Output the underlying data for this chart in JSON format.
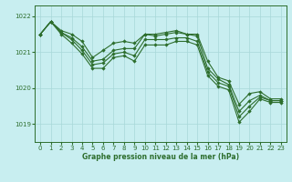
{
  "title": "Graphe pression niveau de la mer (hPa)",
  "bg_color": "#c8eef0",
  "line_color": "#2d6e2d",
  "grid_color": "#a8d8d8",
  "ylim": [
    1018.5,
    1022.3
  ],
  "xlim": [
    -0.5,
    23.5
  ],
  "yticks": [
    1019,
    1020,
    1021,
    1022
  ],
  "xticks": [
    0,
    1,
    2,
    3,
    4,
    5,
    6,
    7,
    8,
    9,
    10,
    11,
    12,
    13,
    14,
    15,
    16,
    17,
    18,
    19,
    20,
    21,
    22,
    23
  ],
  "series": [
    [
      1021.5,
      1021.85,
      1021.6,
      1021.5,
      1021.3,
      1020.85,
      1021.05,
      1021.25,
      1021.3,
      1021.25,
      1021.5,
      1021.5,
      1021.55,
      1021.6,
      1021.5,
      1021.5,
      1020.75,
      1020.3,
      1020.2,
      1019.55,
      1019.85,
      1019.9,
      1019.7,
      1019.7
    ],
    [
      1021.5,
      1021.85,
      1021.55,
      1021.4,
      1021.15,
      1020.75,
      1020.8,
      1021.05,
      1021.1,
      1021.1,
      1021.5,
      1021.45,
      1021.5,
      1021.55,
      1021.5,
      1021.45,
      1020.55,
      1020.25,
      1020.1,
      1019.35,
      1019.65,
      1019.8,
      1019.65,
      1019.65
    ],
    [
      1021.5,
      1021.85,
      1021.55,
      1021.35,
      1021.05,
      1020.65,
      1020.7,
      1020.95,
      1021.0,
      1020.9,
      1021.35,
      1021.35,
      1021.35,
      1021.4,
      1021.4,
      1021.3,
      1020.45,
      1020.15,
      1020.05,
      1019.2,
      1019.5,
      1019.75,
      1019.65,
      1019.65
    ],
    [
      1021.5,
      1021.85,
      1021.5,
      1021.25,
      1020.95,
      1020.55,
      1020.55,
      1020.85,
      1020.9,
      1020.75,
      1021.2,
      1021.2,
      1021.2,
      1021.3,
      1021.3,
      1021.2,
      1020.35,
      1020.05,
      1019.95,
      1019.05,
      1019.35,
      1019.7,
      1019.6,
      1019.6
    ]
  ]
}
